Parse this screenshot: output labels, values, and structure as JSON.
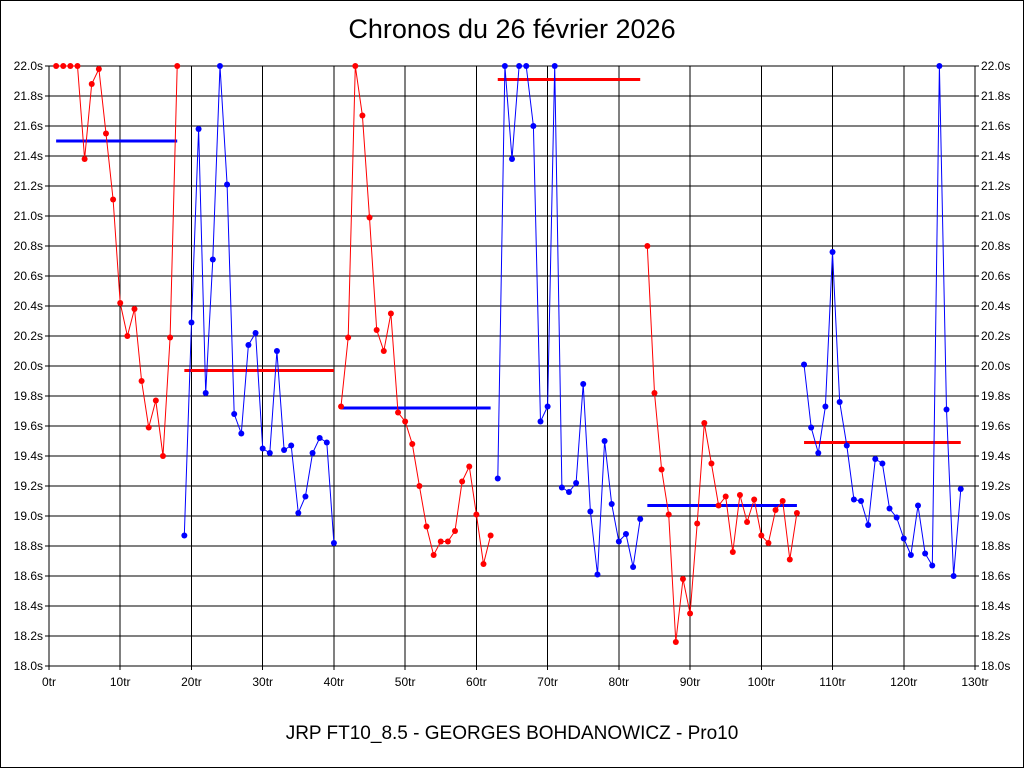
{
  "chart_data": {
    "type": "line",
    "title": "Chronos du 26 février 2026",
    "footer": "JRP FT10_8.5 - GEORGES BOHDANOWICZ - Pro10",
    "x_ticks": [
      "0tr",
      "10tr",
      "20tr",
      "30tr",
      "40tr",
      "50tr",
      "60tr",
      "70tr",
      "80tr",
      "90tr",
      "100tr",
      "110tr",
      "120tr",
      "130tr"
    ],
    "y_ticks": [
      "18.0s",
      "18.2s",
      "18.4s",
      "18.6s",
      "18.8s",
      "19.0s",
      "19.2s",
      "19.4s",
      "19.6s",
      "19.8s",
      "20.0s",
      "20.2s",
      "20.4s",
      "20.6s",
      "20.8s",
      "21.0s",
      "21.2s",
      "21.4s",
      "21.6s",
      "21.8s",
      "22.0s"
    ],
    "xlim": [
      0,
      130
    ],
    "ylim": [
      18.0,
      22.0
    ],
    "grid": true,
    "colors": {
      "red": "#ff0000",
      "blue": "#0000ff"
    },
    "series": [
      {
        "color": "red",
        "x": [
          1,
          2,
          3,
          4,
          5,
          6,
          7,
          8,
          9,
          10,
          11,
          12,
          13,
          14,
          15,
          16,
          17,
          18
        ],
        "y": [
          22.0,
          22.0,
          22.0,
          22.0,
          21.38,
          21.88,
          21.98,
          21.55,
          21.11,
          20.42,
          20.2,
          20.38,
          19.9,
          19.59,
          19.77,
          19.4,
          20.19,
          22.0
        ]
      },
      {
        "color": "blue",
        "x": [
          19,
          20,
          21,
          22,
          23,
          24,
          25,
          26,
          27,
          28,
          29,
          30,
          31,
          32,
          33,
          34,
          35,
          36,
          37,
          38,
          39,
          40
        ],
        "y": [
          18.87,
          20.29,
          21.58,
          19.82,
          20.71,
          22.0,
          21.21,
          19.68,
          19.55,
          20.14,
          20.22,
          19.45,
          19.42,
          20.1,
          19.44,
          19.47,
          19.02,
          19.13,
          19.42,
          19.52,
          19.49,
          18.82
        ]
      },
      {
        "color": "red",
        "x": [
          41,
          42,
          43,
          44,
          45,
          46,
          47,
          48,
          49,
          50,
          51,
          52,
          53,
          54,
          55,
          56,
          57,
          58,
          59,
          60,
          61,
          62
        ],
        "y": [
          19.73,
          20.19,
          22.0,
          21.67,
          20.99,
          20.24,
          20.1,
          20.35,
          19.69,
          19.63,
          19.48,
          19.2,
          18.93,
          18.74,
          18.83,
          18.83,
          18.9,
          19.23,
          19.33,
          19.01,
          18.68,
          18.87
        ]
      },
      {
        "color": "blue",
        "x": [
          63,
          64,
          65,
          66,
          67,
          68,
          69,
          70,
          71,
          72,
          73,
          74,
          75,
          76,
          77,
          78,
          79,
          80,
          81,
          82,
          83
        ],
        "y": [
          19.25,
          22.0,
          21.38,
          22.0,
          22.0,
          21.6,
          19.63,
          19.73,
          22.0,
          19.19,
          19.16,
          19.22,
          19.88,
          19.03,
          18.61,
          19.5,
          19.08,
          18.83,
          18.88,
          18.66,
          18.98
        ]
      },
      {
        "color": "red",
        "x": [
          84,
          85,
          86,
          87,
          88,
          89,
          90,
          91,
          92,
          93,
          94,
          95,
          96,
          97,
          98,
          99,
          100,
          101,
          102,
          103,
          104,
          105
        ],
        "y": [
          20.8,
          19.82,
          19.31,
          19.01,
          18.16,
          18.58,
          18.35,
          18.95,
          19.62,
          19.35,
          19.07,
          19.13,
          18.76,
          19.14,
          18.96,
          19.11,
          18.87,
          18.82,
          19.04,
          19.1,
          18.71,
          19.02
        ]
      },
      {
        "color": "blue",
        "x": [
          106,
          107,
          108,
          109,
          110,
          111,
          112,
          113,
          114,
          115,
          116,
          117,
          118,
          119,
          120,
          121,
          122,
          123,
          124,
          125,
          126,
          127,
          128
        ],
        "y": [
          20.01,
          19.59,
          19.42,
          19.73,
          20.76,
          19.76,
          19.47,
          19.11,
          19.1,
          18.94,
          19.38,
          19.35,
          19.05,
          18.99,
          18.85,
          18.74,
          19.07,
          18.75,
          18.67,
          22.0,
          19.71,
          18.6,
          19.18
        ]
      }
    ],
    "averages": [
      {
        "color": "blue",
        "x_start": 1,
        "x_end": 18,
        "value": 21.5
      },
      {
        "color": "red",
        "x_start": 19,
        "x_end": 40,
        "value": 19.97
      },
      {
        "color": "blue",
        "x_start": 41,
        "x_end": 62,
        "value": 19.72
      },
      {
        "color": "red",
        "x_start": 63,
        "x_end": 83,
        "value": 21.91
      },
      {
        "color": "blue",
        "x_start": 84,
        "x_end": 105,
        "value": 19.07
      },
      {
        "color": "red",
        "x_start": 106,
        "x_end": 128,
        "value": 19.49
      }
    ]
  }
}
